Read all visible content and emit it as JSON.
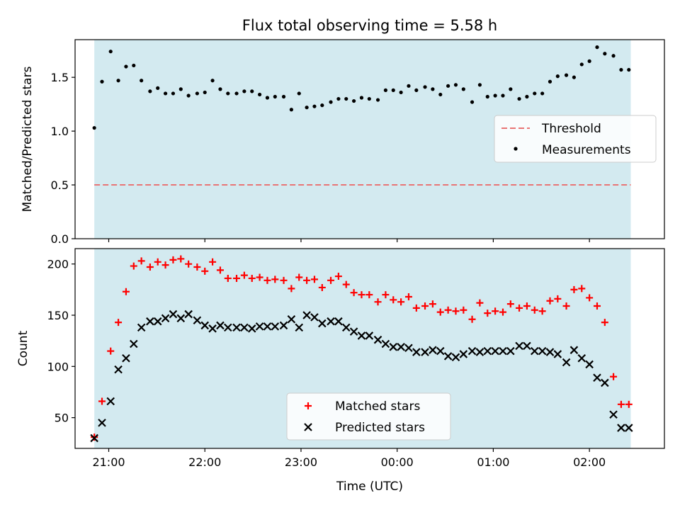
{
  "title": "Flux total observing time = 5.58 h",
  "colors": {
    "shade": "#d3eaf0",
    "threshold": "#e87575",
    "matched": "#ff0000",
    "predicted": "#000000",
    "measurement": "#000000"
  },
  "chart_data": [
    {
      "type": "scatter",
      "ylabel": "Matched/Predicted stars",
      "xlabel": "",
      "xlim": [
        -0.35,
        5.78
      ],
      "ylim": [
        0,
        1.85
      ],
      "yticks": [
        0.0,
        0.5,
        1.0,
        1.5
      ],
      "ytick_labels": [
        "0.0",
        "0.5",
        "1.0",
        "1.5"
      ],
      "shaded_interval": [
        -0.15,
        5.43
      ],
      "legend": {
        "placement": "center-right",
        "entries": [
          "Threshold",
          "Measurements"
        ]
      },
      "threshold": {
        "name": "Threshold",
        "y": 0.5,
        "x_range": [
          -0.15,
          5.43
        ],
        "style": "dashed"
      },
      "series": [
        {
          "name": "Measurements",
          "marker": "dot",
          "x": [
            -0.15,
            -0.07,
            0.02,
            0.1,
            0.18,
            0.26,
            0.34,
            0.43,
            0.51,
            0.59,
            0.67,
            0.75,
            0.83,
            0.92,
            1.0,
            1.08,
            1.16,
            1.24,
            1.33,
            1.41,
            1.49,
            1.57,
            1.65,
            1.73,
            1.82,
            1.9,
            1.98,
            2.06,
            2.14,
            2.22,
            2.31,
            2.39,
            2.47,
            2.55,
            2.63,
            2.71,
            2.8,
            2.88,
            2.96,
            3.04,
            3.12,
            3.2,
            3.29,
            3.37,
            3.45,
            3.53,
            3.61,
            3.69,
            3.78,
            3.86,
            3.94,
            4.02,
            4.1,
            4.18,
            4.27,
            4.35,
            4.43,
            4.51,
            4.59,
            4.67,
            4.76,
            4.84,
            4.92,
            5.0,
            5.08,
            5.16,
            5.25,
            5.33,
            5.41
          ],
          "y": [
            1.03,
            1.46,
            1.74,
            1.47,
            1.6,
            1.61,
            1.47,
            1.37,
            1.4,
            1.35,
            1.35,
            1.39,
            1.33,
            1.35,
            1.36,
            1.47,
            1.39,
            1.35,
            1.35,
            1.37,
            1.37,
            1.34,
            1.31,
            1.32,
            1.32,
            1.2,
            1.35,
            1.22,
            1.23,
            1.24,
            1.27,
            1.3,
            1.3,
            1.28,
            1.31,
            1.3,
            1.29,
            1.38,
            1.38,
            1.36,
            1.42,
            1.38,
            1.41,
            1.39,
            1.34,
            1.42,
            1.43,
            1.39,
            1.27,
            1.43,
            1.32,
            1.33,
            1.33,
            1.39,
            1.3,
            1.32,
            1.35,
            1.35,
            1.46,
            1.51,
            1.52,
            1.5,
            1.62,
            1.65,
            1.78,
            1.72,
            1.7,
            1.57,
            1.57
          ]
        }
      ]
    },
    {
      "type": "scatter",
      "ylabel": "Count",
      "xlabel": "Time (UTC)",
      "xlim": [
        -0.35,
        5.78
      ],
      "ylim": [
        20,
        215
      ],
      "yticks": [
        50,
        100,
        150,
        200
      ],
      "ytick_labels": [
        "50",
        "100",
        "150",
        "200"
      ],
      "xticks": [
        0,
        1,
        2,
        3,
        4,
        5
      ],
      "xtick_labels": [
        "21:00",
        "22:00",
        "23:00",
        "00:00",
        "01:00",
        "02:00"
      ],
      "shaded_interval": [
        -0.15,
        5.43
      ],
      "legend": {
        "placement": "bottom-center",
        "entries": [
          "Matched stars",
          "Predicted stars"
        ]
      },
      "series": [
        {
          "name": "Matched stars",
          "marker": "plus",
          "x": [
            -0.15,
            -0.07,
            0.02,
            0.1,
            0.18,
            0.26,
            0.34,
            0.43,
            0.51,
            0.59,
            0.67,
            0.75,
            0.83,
            0.92,
            1.0,
            1.08,
            1.16,
            1.24,
            1.33,
            1.41,
            1.49,
            1.57,
            1.65,
            1.73,
            1.82,
            1.9,
            1.98,
            2.06,
            2.14,
            2.22,
            2.31,
            2.39,
            2.47,
            2.55,
            2.63,
            2.71,
            2.8,
            2.88,
            2.96,
            3.04,
            3.12,
            3.2,
            3.29,
            3.37,
            3.45,
            3.53,
            3.61,
            3.69,
            3.78,
            3.86,
            3.94,
            4.02,
            4.1,
            4.18,
            4.27,
            4.35,
            4.43,
            4.51,
            4.59,
            4.67,
            4.76,
            4.84,
            4.92,
            5.0,
            5.08,
            5.16,
            5.25,
            5.33,
            5.41
          ],
          "y": [
            31,
            66,
            115,
            143,
            173,
            198,
            203,
            197,
            202,
            199,
            204,
            205,
            200,
            197,
            193,
            202,
            194,
            186,
            186,
            189,
            186,
            187,
            184,
            185,
            184,
            176,
            187,
            184,
            185,
            177,
            184,
            188,
            180,
            172,
            170,
            170,
            163,
            170,
            165,
            163,
            168,
            157,
            159,
            161,
            153,
            155,
            154,
            155,
            146,
            162,
            152,
            154,
            153,
            161,
            157,
            159,
            155,
            154,
            164,
            166,
            159,
            175,
            176,
            167,
            159,
            143,
            90,
            63,
            63
          ]
        },
        {
          "name": "Predicted stars",
          "marker": "x",
          "x": [
            -0.15,
            -0.07,
            0.02,
            0.1,
            0.18,
            0.26,
            0.34,
            0.43,
            0.51,
            0.59,
            0.67,
            0.75,
            0.83,
            0.92,
            1.0,
            1.08,
            1.16,
            1.24,
            1.33,
            1.41,
            1.49,
            1.57,
            1.65,
            1.73,
            1.82,
            1.9,
            1.98,
            2.06,
            2.14,
            2.22,
            2.31,
            2.39,
            2.47,
            2.55,
            2.63,
            2.71,
            2.8,
            2.88,
            2.96,
            3.04,
            3.12,
            3.2,
            3.29,
            3.37,
            3.45,
            3.53,
            3.61,
            3.69,
            3.78,
            3.86,
            3.94,
            4.02,
            4.1,
            4.18,
            4.27,
            4.35,
            4.43,
            4.51,
            4.59,
            4.67,
            4.76,
            4.84,
            4.92,
            5.0,
            5.08,
            5.16,
            5.25,
            5.33,
            5.41
          ],
          "y": [
            30,
            45,
            66,
            97,
            108,
            122,
            138,
            144,
            144,
            147,
            151,
            147,
            151,
            145,
            140,
            137,
            140,
            138,
            138,
            138,
            137,
            139,
            139,
            139,
            140,
            146,
            138,
            150,
            148,
            142,
            144,
            144,
            138,
            134,
            130,
            130,
            126,
            122,
            119,
            119,
            118,
            114,
            114,
            116,
            115,
            110,
            109,
            112,
            115,
            114,
            115,
            115,
            115,
            115,
            120,
            120,
            115,
            115,
            114,
            112,
            104,
            116,
            108,
            102,
            89,
            84,
            53,
            40,
            40
          ]
        }
      ]
    }
  ]
}
